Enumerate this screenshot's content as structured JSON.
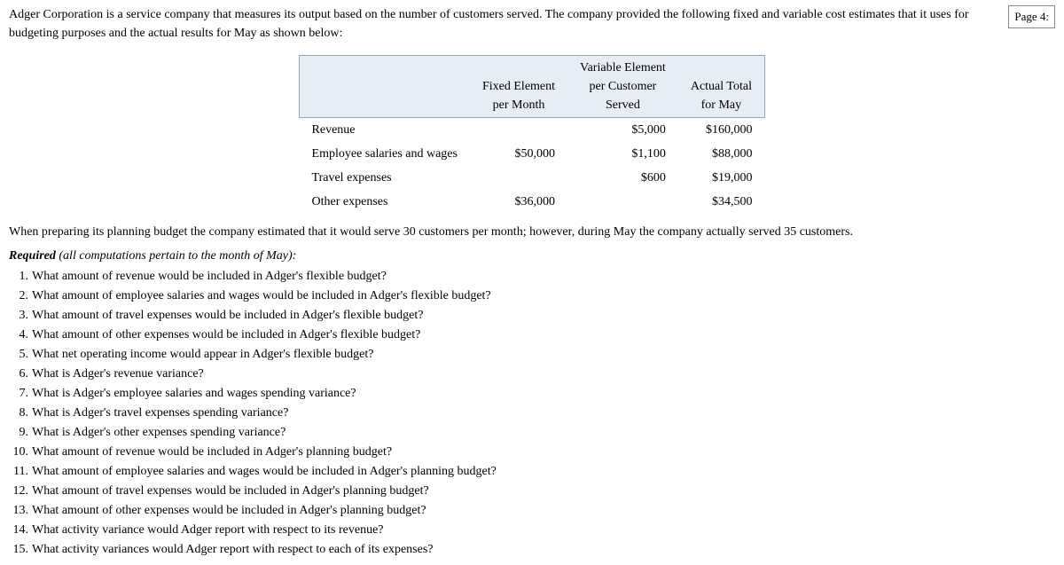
{
  "page_label": "Page 4:",
  "intro": "Adger Corporation is a service company that measures its output based on the number of customers served. The company provided the following fixed and variable cost estimates that it uses for budgeting purposes and the actual results for May as shown below:",
  "table": {
    "headers": {
      "blank": "",
      "col1_line1": "Fixed Element",
      "col1_line2": "per Month",
      "col2_line1": "Variable Element",
      "col2_line2": "per Customer",
      "col2_line3": "Served",
      "col3_line1": "Actual Total",
      "col3_line2": "for May"
    },
    "rows": [
      {
        "label": "Revenue",
        "fixed": "",
        "variable": "$5,000",
        "actual": "$160,000"
      },
      {
        "label": "Employee salaries and wages",
        "fixed": "$50,000",
        "variable": "$1,100",
        "actual": "$88,000"
      },
      {
        "label": "Travel expenses",
        "fixed": "",
        "variable": "$600",
        "actual": "$19,000"
      },
      {
        "label": "Other expenses",
        "fixed": "$36,000",
        "variable": "",
        "actual": "$34,500"
      }
    ],
    "header_bg": "#e6edf5",
    "border_color": "#9aa7b8"
  },
  "mid_paragraph": "When preparing its planning budget the company estimated that it would serve 30 customers per month; however, during May the company actually served 35 customers.",
  "required_label": "Required",
  "required_paren": "(all computations pertain to the month of May):",
  "questions": [
    "What amount of revenue would be included in Adger's flexible budget?",
    "What amount of employee salaries and wages would be included in Adger's flexible budget?",
    "What amount of travel expenses would be included in Adger's flexible budget?",
    "What amount of other expenses would be included in Adger's flexible budget?",
    "What net operating income would appear in Adger's flexible budget?",
    "What is Adger's revenue variance?",
    "What is Adger's employee salaries and wages spending variance?",
    "What is Adger's travel expenses spending variance?",
    "What is Adger's other expenses spending variance?",
    "What amount of revenue would be included in Adger's planning budget?",
    "What amount of employee salaries and wages would be included in Adger's planning budget?",
    "What amount of travel expenses would be included in Adger's planning budget?",
    "What amount of other expenses would be included in Adger's planning budget?",
    "What activity variance would Adger report with respect to its revenue?",
    "What activity variances would Adger report with respect to each of its expenses?"
  ]
}
